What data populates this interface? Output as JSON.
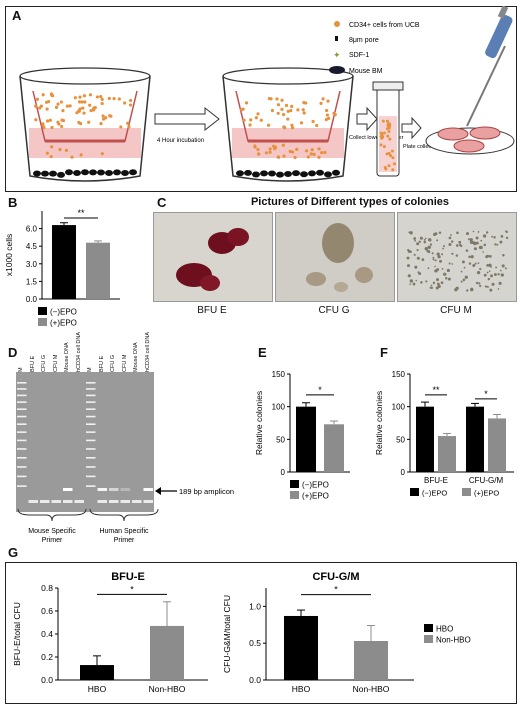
{
  "panels": {
    "A": "A",
    "B": "B",
    "C": "C",
    "D": "D",
    "E": "E",
    "F": "F",
    "G": "G"
  },
  "panelA": {
    "legend": [
      "CD34+ cells from UCB",
      "8μm pore",
      "SDF-1",
      "Mouse BM"
    ],
    "step1": "4 Hour incubation",
    "step2": "Collect lower chamber",
    "step3": "Plate collected cells"
  },
  "colors": {
    "black": "#000000",
    "gray": "#8c8c8c",
    "cell": "#e8913c",
    "pink": "#f4c6c6",
    "dish": "#e8a0a0"
  },
  "panelC": {
    "title": "Pictures of Different types of colonies",
    "labels": [
      "BFU E",
      "CFU G",
      "CFU M"
    ]
  },
  "panelD": {
    "lanes": [
      "M",
      "BFU E",
      "CFU G",
      "CFU M",
      "Mouse DNA",
      "hCD34 cell DNA",
      "M",
      "BFU E",
      "CFU G",
      "CFU M",
      "Mouse DNA",
      "hCD34 cell DNA"
    ],
    "arrow_label": "189 bp amplicon",
    "group1": "Mouse Specific Primer",
    "group2": "Human Specific Primer"
  },
  "chart_data": [
    {
      "id": "B",
      "type": "bar",
      "categories": [
        "(−)EPO",
        "(+)EPO"
      ],
      "values": [
        6.3,
        4.8
      ],
      "errors": [
        0.2,
        0.15
      ],
      "ylabel": "x1000 cells",
      "ylim": [
        0,
        7.5
      ],
      "yticks": [
        "0.0",
        "1.5",
        "3.0",
        "4.5",
        "6.0"
      ],
      "significance": "**",
      "legend": [
        "(−)EPO",
        "(+)EPO"
      ]
    },
    {
      "id": "E",
      "type": "bar",
      "categories": [
        "(−)EPO",
        "(+)EPO"
      ],
      "values": [
        100,
        73
      ],
      "errors": [
        6,
        5
      ],
      "ylabel": "Relative colonies",
      "ylim": [
        0,
        150
      ],
      "yticks": [
        "0",
        "50",
        "100",
        "150"
      ],
      "significance": "*",
      "legend": [
        "(−)EPO",
        "(+)EPO"
      ]
    },
    {
      "id": "F",
      "type": "bar",
      "categories": [
        "BFU-E",
        "CFU-G/M"
      ],
      "series": [
        {
          "name": "(−)EPO",
          "values": [
            100,
            100
          ],
          "errors": [
            7,
            5
          ]
        },
        {
          "name": "(+)EPO",
          "values": [
            55,
            82
          ],
          "errors": [
            4,
            6
          ]
        }
      ],
      "ylabel": "Relative colonies",
      "ylim": [
        0,
        150
      ],
      "yticks": [
        "0",
        "50",
        "100",
        "150"
      ],
      "significance": [
        "**",
        "*"
      ],
      "legend": [
        "(−)EPO",
        "(+)EPO"
      ]
    },
    {
      "id": "G1",
      "type": "bar",
      "title": "BFU-E",
      "categories": [
        "HBO",
        "Non-HBO"
      ],
      "values": [
        0.13,
        0.47
      ],
      "errors": [
        0.08,
        0.21
      ],
      "ylabel": "BFU-E/total CFU",
      "ylim": [
        0,
        0.8
      ],
      "yticks": [
        "0.0",
        "0.2",
        "0.4",
        "0.6",
        "0.8"
      ],
      "significance": "*"
    },
    {
      "id": "G2",
      "type": "bar",
      "title": "CFU-G/M",
      "categories": [
        "HBO",
        "Non-HBO"
      ],
      "values": [
        0.87,
        0.53
      ],
      "errors": [
        0.08,
        0.21
      ],
      "ylabel": "CFU-G&M/total CFU",
      "ylim": [
        0,
        1.25
      ],
      "yticks": [
        "0.0",
        "0.5",
        "1.0"
      ],
      "significance": "*",
      "legend": [
        "HBO",
        "Non-HBO"
      ]
    }
  ]
}
